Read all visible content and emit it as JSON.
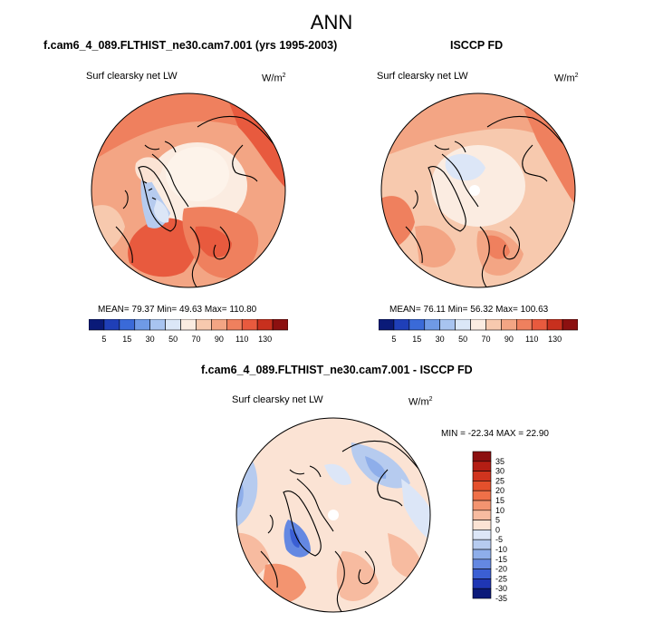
{
  "page_title": "ANN",
  "panels": [
    {
      "title": "f.cam6_4_089.FLTHIST_ne30.cam7.001 (yrs 1995-2003)",
      "variable": "Surf clearsky net LW",
      "units": "W/m",
      "units_sup": "2",
      "stats": "MEAN= 79.37  Min= 49.63  Max= 110.80",
      "colorbar_labels": [
        "5",
        "15",
        "30",
        "50",
        "70",
        "90",
        "110",
        "130"
      ]
    },
    {
      "title": "ISCCP FD",
      "variable": "Surf clearsky net LW",
      "units": "W/m",
      "units_sup": "2",
      "stats": "MEAN= 76.11  Min= 56.32  Max= 100.63",
      "colorbar_labels": [
        "5",
        "15",
        "30",
        "50",
        "70",
        "90",
        "110",
        "130"
      ]
    },
    {
      "title": "f.cam6_4_089.FLTHIST_ne30.cam7.001 - ISCCP FD",
      "variable": "Surf clearsky net LW",
      "units": "W/m",
      "units_sup": "2",
      "stats": "MIN = -22.34  MAX =  22.90",
      "colorbar_labels": [
        "35",
        "30",
        "25",
        "20",
        "15",
        "10",
        "5",
        "0",
        "-5",
        "-10",
        "-15",
        "-20",
        "-25",
        "-30",
        "-35"
      ]
    }
  ],
  "colors": {
    "abs_scale": [
      "#0a1a78",
      "#1f3fb8",
      "#3a6ad8",
      "#6f9ae6",
      "#a8c4f0",
      "#dbe7f7",
      "#fbece1",
      "#f7c9ae",
      "#f3a584",
      "#ef805e",
      "#e85a3e",
      "#c8301e",
      "#8c1010"
    ],
    "diff_scale": [
      "#8c1010",
      "#b41e14",
      "#d0341e",
      "#e4502c",
      "#ef7048",
      "#f39470",
      "#f7bba0",
      "#fbe3d4",
      "#dce6f7",
      "#b6cbef",
      "#8eaeea",
      "#6488e2",
      "#3b5fd4",
      "#1f36b4",
      "#0c1a7a"
    ]
  }
}
